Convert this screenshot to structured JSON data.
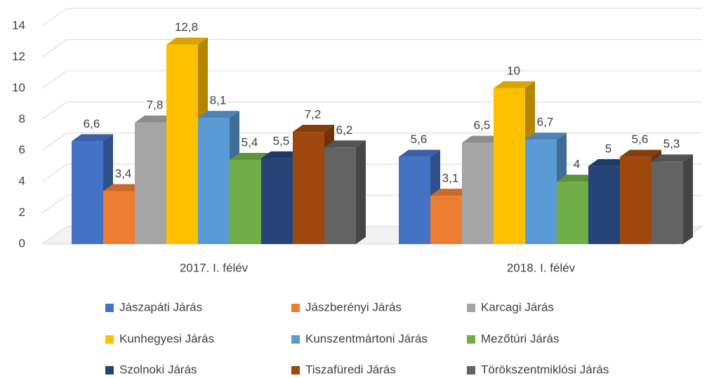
{
  "chart_data": {
    "type": "bar3d",
    "categories": [
      "2017. I. félév",
      "2018. I. félév"
    ],
    "series": [
      {
        "name": "Jászapáti Járás",
        "color": "#4472c4",
        "values": [
          6.6,
          5.6
        ],
        "value_labels": [
          "6,6",
          "5,6"
        ]
      },
      {
        "name": "Jászberényi Járás",
        "color": "#ed7d31",
        "values": [
          3.4,
          3.1
        ],
        "value_labels": [
          "3,4",
          "3,1"
        ]
      },
      {
        "name": "Karcagi Járás",
        "color": "#a5a5a5",
        "values": [
          7.8,
          6.5
        ],
        "value_labels": [
          "7,8",
          "6,5"
        ]
      },
      {
        "name": "Kunhegyesi Járás",
        "color": "#ffc000",
        "values": [
          12.8,
          10
        ],
        "value_labels": [
          "12,8",
          "10"
        ]
      },
      {
        "name": "Kunszentmártoni Járás",
        "color": "#5b9bd5",
        "values": [
          8.1,
          6.7
        ],
        "value_labels": [
          "8,1",
          "6,7"
        ]
      },
      {
        "name": "Mezőtúri Járás",
        "color": "#70ad47",
        "values": [
          5.4,
          4
        ],
        "value_labels": [
          "5,4",
          "4"
        ]
      },
      {
        "name": "Szolnoki Járás",
        "color": "#264478",
        "values": [
          5.5,
          5
        ],
        "value_labels": [
          "5,5",
          "5"
        ]
      },
      {
        "name": "Tiszafüredi Járás",
        "color": "#9e480e",
        "values": [
          7.2,
          5.6
        ],
        "value_labels": [
          "7,2",
          "5,6"
        ]
      },
      {
        "name": "Törökszentmiklósi Járás",
        "color": "#636363",
        "values": [
          6.2,
          5.3
        ],
        "value_labels": [
          "6,2",
          "5,3"
        ]
      }
    ],
    "ylim": [
      0,
      14
    ],
    "yticks": [
      0,
      2,
      4,
      6,
      8,
      10,
      12,
      14
    ],
    "grid": true,
    "legend": "bottom"
  }
}
